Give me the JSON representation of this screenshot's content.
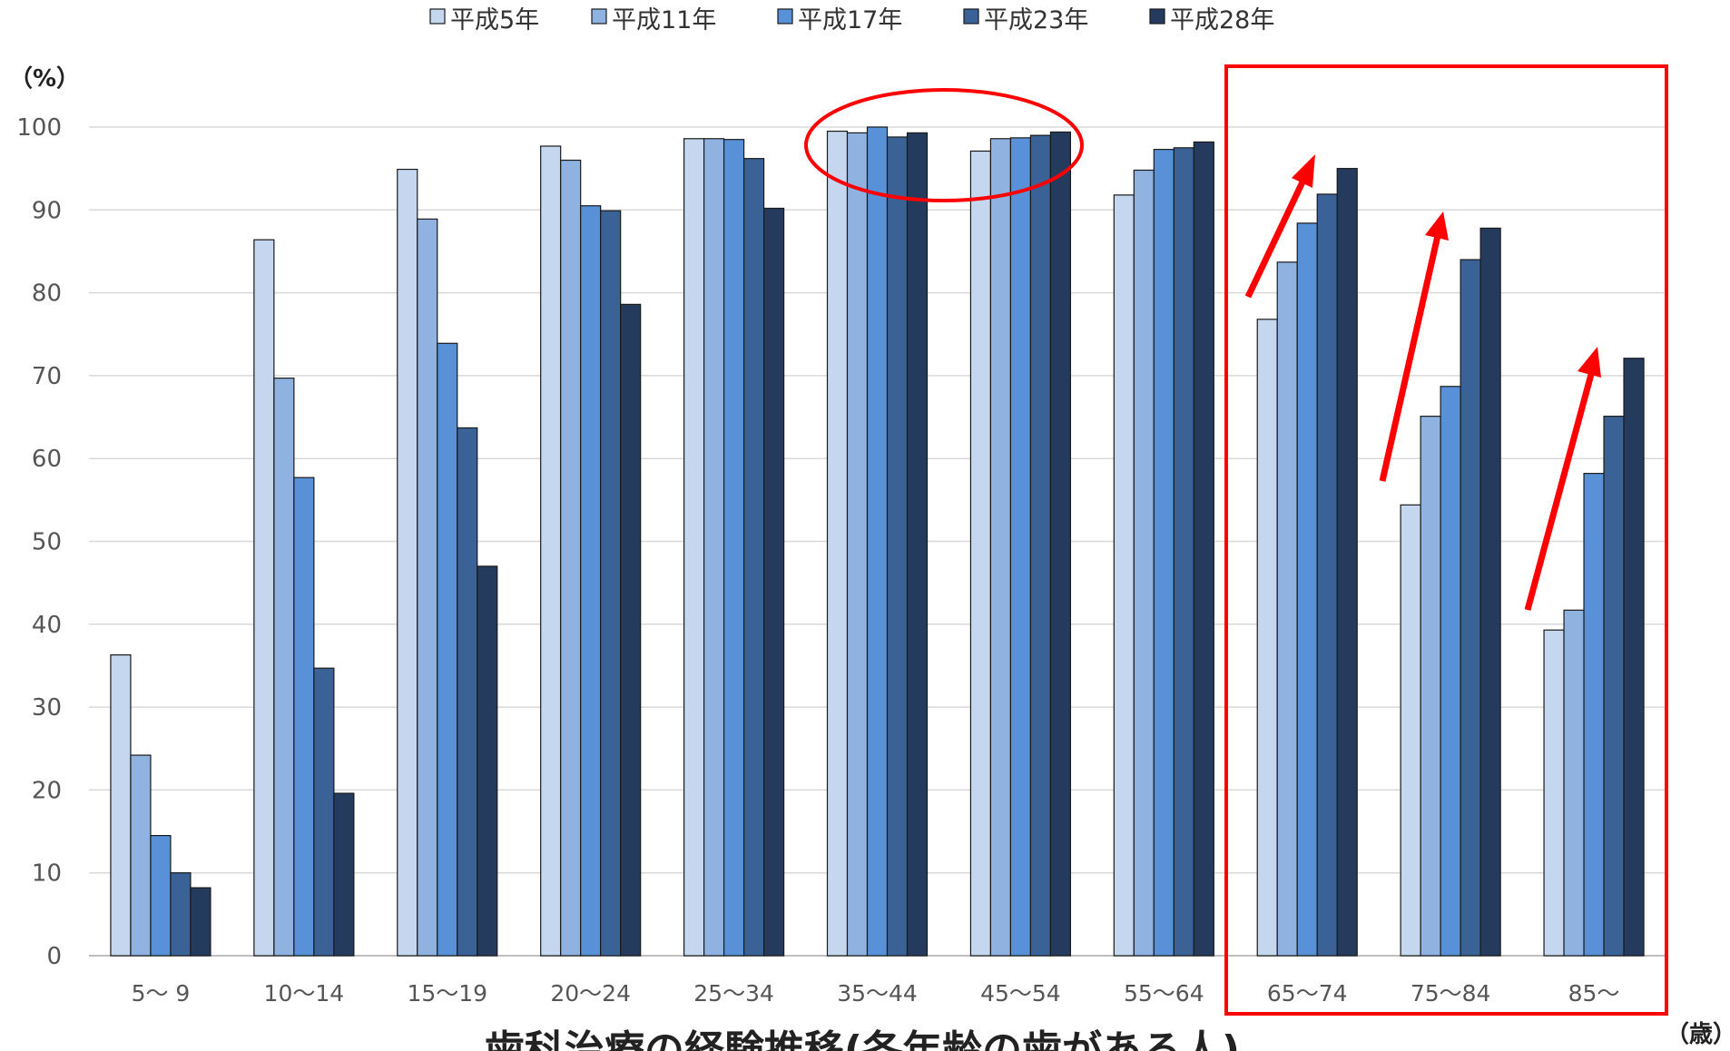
{
  "chart_data": {
    "type": "bar",
    "title": "歯科治療の経験推移(各年齢の歯がある人)",
    "ylabel": "（%）",
    "xlabel": "（歳）",
    "ylim": [
      0,
      100
    ],
    "yticks": [
      0,
      10,
      20,
      30,
      40,
      50,
      60,
      70,
      80,
      90,
      100
    ],
    "grid": true,
    "legend_position": "top",
    "categories": [
      "5～ 9",
      "10～14",
      "15～19",
      "20～24",
      "25～34",
      "35～44",
      "45～54",
      "55～64",
      "65～74",
      "75～84",
      "85～"
    ],
    "series": [
      {
        "name": "平成5年",
        "color": "#c5d7ef",
        "values": [
          36.3,
          86.4,
          94.9,
          97.7,
          98.6,
          99.5,
          97.1,
          91.8,
          76.8,
          54.4,
          39.3
        ]
      },
      {
        "name": "平成11年",
        "color": "#8fb2e0",
        "values": [
          24.2,
          69.7,
          88.9,
          96.0,
          98.6,
          99.3,
          98.6,
          94.8,
          83.7,
          65.1,
          41.7
        ]
      },
      {
        "name": "平成17年",
        "color": "#5891d8",
        "values": [
          14.5,
          57.7,
          73.9,
          90.5,
          98.5,
          100.0,
          98.7,
          97.3,
          88.4,
          68.7,
          58.2
        ]
      },
      {
        "name": "平成23年",
        "color": "#3a6296",
        "values": [
          10.0,
          34.7,
          63.7,
          89.9,
          96.2,
          98.8,
          99.0,
          97.5,
          91.9,
          84.0,
          65.1
        ]
      },
      {
        "name": "平成28年",
        "color": "#243b5e",
        "values": [
          8.2,
          19.6,
          47.0,
          78.6,
          90.2,
          99.3,
          99.4,
          98.2,
          95.0,
          87.8,
          72.1
        ]
      }
    ]
  },
  "colors": {
    "annotation": "#ff0000",
    "grid": "#d9d9d9",
    "axis": "#bfbfbf",
    "bar_outline": "#1a1a1a"
  }
}
